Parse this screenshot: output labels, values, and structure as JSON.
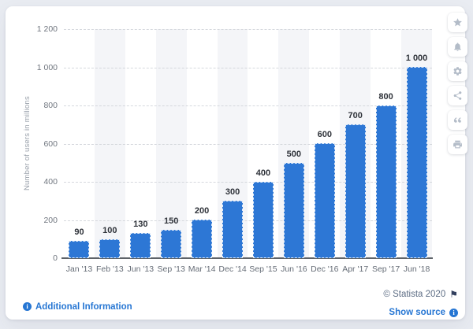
{
  "chart_data": {
    "type": "bar",
    "title": "",
    "xlabel": "",
    "ylabel": "Number of users in millions",
    "categories": [
      "Jan '13",
      "Feb '13",
      "Jun '13",
      "Sep '13",
      "Mar '14",
      "Dec '14",
      "Sep '15",
      "Jun '16",
      "Dec '16",
      "Apr '17",
      "Sep '17",
      "Jun '18"
    ],
    "values": [
      90,
      100,
      130,
      150,
      200,
      300,
      400,
      500,
      600,
      700,
      800,
      1000
    ],
    "value_labels": [
      "90",
      "100",
      "130",
      "150",
      "200",
      "300",
      "400",
      "500",
      "600",
      "700",
      "800",
      "1 000"
    ],
    "ylim": [
      0,
      1200
    ],
    "ytick_values": [
      0,
      200,
      400,
      600,
      800,
      1000,
      1200
    ],
    "ytick_labels": [
      "0",
      "200",
      "400",
      "600",
      "800",
      "1 000",
      "1 200"
    ],
    "grid": "horizontal-dashed",
    "legend": "none",
    "alt_bands": "even category columns shaded",
    "bar_color": "#2d77d5",
    "band_color": "#f4f5f8"
  },
  "toolbar": {
    "buttons": [
      {
        "name": "favorite",
        "icon": "star-icon"
      },
      {
        "name": "alerts",
        "icon": "bell-icon"
      },
      {
        "name": "settings",
        "icon": "gear-icon"
      },
      {
        "name": "share",
        "icon": "share-icon"
      },
      {
        "name": "cite",
        "icon": "quote-icon"
      },
      {
        "name": "print",
        "icon": "print-icon"
      }
    ]
  },
  "footer": {
    "additional_information_label": "Additional Information",
    "copyright_label": "© Statista 2020",
    "show_source_label": "Show source"
  },
  "colors": {
    "link_blue": "#2676d3",
    "bar_blue": "#2d77d5",
    "band_gray": "#f4f5f8",
    "copyright_text": "#5d6d84",
    "page_background": "#e9ecf2"
  }
}
